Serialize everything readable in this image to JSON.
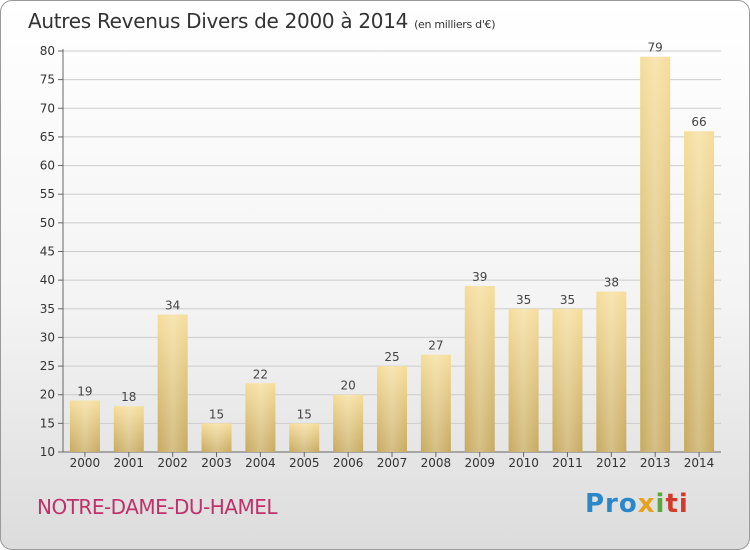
{
  "title": "Autres Revenus Divers de 2000 à 2014",
  "unit": "(en milliers d'€)",
  "commune": "NOTRE-DAME-DU-HAMEL",
  "logo": {
    "p1": "Pro",
    "p2": "x",
    "p3": "i",
    "p4": "ti"
  },
  "colors": {
    "bar_light": "#f6dd9a",
    "bar_dark": "#c7aa5f",
    "commune": "#c0306a",
    "grid": "#cccccc"
  },
  "chart_data": {
    "type": "bar",
    "categories": [
      "2000",
      "2001",
      "2002",
      "2003",
      "2004",
      "2005",
      "2006",
      "2007",
      "2008",
      "2009",
      "2010",
      "2011",
      "2012",
      "2013",
      "2014"
    ],
    "values": [
      19,
      18,
      34,
      15,
      22,
      15,
      20,
      25,
      27,
      39,
      35,
      35,
      38,
      79,
      66
    ],
    "yticks": [
      10,
      15,
      20,
      25,
      30,
      35,
      40,
      45,
      50,
      55,
      60,
      65,
      70,
      75,
      80
    ],
    "ylim": [
      10,
      80
    ],
    "grid": "horizontal",
    "title": "Autres Revenus Divers de 2000 à 2014",
    "xlabel": "",
    "ylabel": ""
  }
}
